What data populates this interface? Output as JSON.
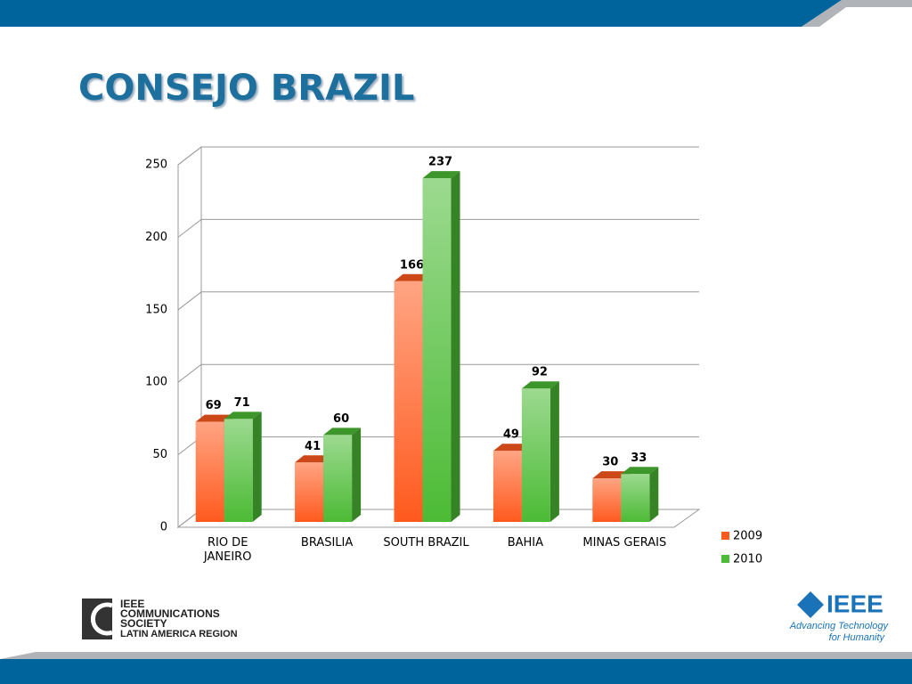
{
  "chart_data": {
    "type": "bar3d",
    "title": "CONSEJO BRAZIL",
    "categories": [
      "RIO DE JANEIRO",
      "BRASILIA",
      "SOUTH BRAZIL",
      "BAHIA",
      "MINAS GERAIS"
    ],
    "series": [
      {
        "name": "2009",
        "color": "#ff5a1e",
        "values": [
          69,
          41,
          166,
          49,
          30
        ]
      },
      {
        "name": "2010",
        "color": "#4cbb35",
        "values": [
          71,
          60,
          237,
          92,
          33
        ]
      }
    ],
    "ylim": [
      0,
      250
    ],
    "yticks": [
      0,
      50,
      100,
      150,
      200,
      250
    ],
    "grid": true,
    "legend": "right"
  },
  "logos": {
    "left": [
      "IEEE",
      "COMMUNICATIONS",
      "SOCIETY",
      "LATIN AMERICA REGION"
    ],
    "right": {
      "name": "IEEE",
      "tagline": [
        "Advancing Technology",
        "for Humanity"
      ]
    }
  }
}
